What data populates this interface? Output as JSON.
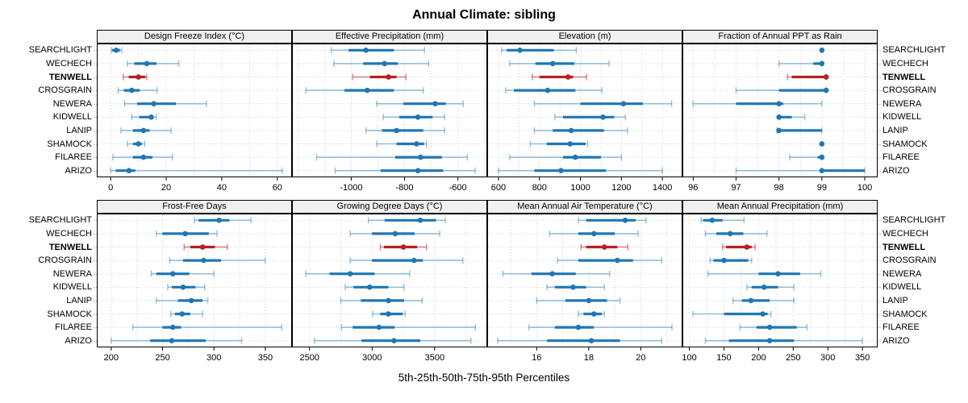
{
  "title": "Annual Climate: sibling",
  "caption": "5th-25th-50th-75th-95th Percentiles",
  "sites": [
    {
      "name": "SEARCHLIGHT",
      "highlight": false
    },
    {
      "name": "WECHECH",
      "highlight": false
    },
    {
      "name": "TENWELL",
      "highlight": true
    },
    {
      "name": "CROSGRAIN",
      "highlight": false
    },
    {
      "name": "NEWERA",
      "highlight": false
    },
    {
      "name": "KIDWELL",
      "highlight": false
    },
    {
      "name": "LANIP",
      "highlight": false
    },
    {
      "name": "SHAMOCK",
      "highlight": false
    },
    {
      "name": "FILAREE",
      "highlight": false
    },
    {
      "name": "ARIZO",
      "highlight": false
    }
  ],
  "colors": {
    "series": "#1f77b4",
    "series_light": "rgba(31,119,180,0.45)",
    "highlight": "#b22222",
    "highlight_light": "rgba(178,34,34,0.55)",
    "grid": "#cccccc",
    "border": "#000000",
    "header_bg": "#f0f0f0"
  },
  "chart_data": {
    "type": "dot-whisker-percentiles",
    "percentiles": [
      "5th",
      "25th",
      "50th",
      "75th",
      "95th"
    ],
    "note": "values[i] = [p5,p25,p50,p75,p95] for sites[i]; TENWELL highlighted red",
    "panels": [
      {
        "row": 0,
        "col": 0,
        "title": "Design Freeze Index (°C)",
        "xlim": [
          -5,
          65.3
        ],
        "grid_step": 10,
        "ticks": [
          0,
          20,
          40,
          60
        ],
        "tick_labels": [
          "0",
          "20",
          "40",
          "60"
        ],
        "values": [
          [
            0.3,
            0.5,
            2.0,
            3.4,
            4.0
          ],
          [
            6.0,
            8.5,
            13.0,
            16.5,
            24.5
          ],
          [
            4.5,
            6.5,
            10.0,
            12.5,
            13.0
          ],
          [
            2.7,
            4.7,
            7.6,
            10.5,
            16.7
          ],
          [
            5.0,
            9.5,
            15.5,
            23.5,
            34.5
          ],
          [
            7.6,
            10.3,
            14.6,
            15.4,
            16.4
          ],
          [
            3.7,
            8.0,
            11.8,
            14.0,
            21.8
          ],
          [
            6.0,
            8.0,
            10.0,
            11.2,
            12.3
          ],
          [
            0.8,
            8.0,
            11.8,
            15.0,
            22.2
          ],
          [
            0.0,
            1.8,
            6.6,
            8.9,
            61.8
          ]
        ]
      },
      {
        "row": 0,
        "col": 1,
        "title": "Effective Precipitation (mm)",
        "xlim": [
          -1222,
          -490
        ],
        "grid_step": 100,
        "ticks": [
          -1000,
          -800,
          -600
        ],
        "tick_labels": [
          "-1000",
          "-800",
          "-600"
        ],
        "values": [
          [
            -1075,
            -1010,
            -945,
            -840,
            -725
          ],
          [
            -1065,
            -955,
            -875,
            -825,
            -710
          ],
          [
            -995,
            -930,
            -860,
            -830,
            -795
          ],
          [
            -1170,
            -1025,
            -940,
            -840,
            -730
          ],
          [
            -905,
            -805,
            -685,
            -645,
            -580
          ],
          [
            -880,
            -820,
            -750,
            -695,
            -650
          ],
          [
            -945,
            -885,
            -830,
            -730,
            -650
          ],
          [
            -905,
            -830,
            -755,
            -727,
            -718
          ],
          [
            -1130,
            -835,
            -740,
            -660,
            -565
          ],
          [
            -1060,
            -890,
            -750,
            -655,
            -535
          ]
        ]
      },
      {
        "row": 0,
        "col": 2,
        "title": "Elevation (m)",
        "xlim": [
          545,
          1498
        ],
        "grid_step": 100,
        "ticks": [
          600,
          800,
          1000,
          1200,
          1400
        ],
        "tick_labels": [
          "600",
          "800",
          "1000",
          "1200",
          "1400"
        ],
        "values": [
          [
            615,
            640,
            705,
            870,
            980
          ],
          [
            655,
            780,
            865,
            970,
            1140
          ],
          [
            765,
            800,
            940,
            965,
            1030
          ],
          [
            635,
            675,
            840,
            975,
            1105
          ],
          [
            775,
            1000,
            1210,
            1305,
            1445
          ],
          [
            875,
            915,
            1110,
            1165,
            1220
          ],
          [
            775,
            865,
            955,
            1115,
            1230
          ],
          [
            755,
            835,
            950,
            1025,
            1035
          ],
          [
            655,
            915,
            975,
            1100,
            1200
          ],
          [
            600,
            775,
            905,
            1125,
            1400
          ]
        ]
      },
      {
        "row": 0,
        "col": 3,
        "title": "Fraction of Annual PPT as Rain",
        "xlim": [
          95.75,
          100.3
        ],
        "grid_step": 0.5,
        "ticks": [
          96,
          97,
          98,
          99,
          100
        ],
        "tick_labels": [
          "96",
          "97",
          "98",
          "99",
          "100"
        ],
        "values": [
          [
            99,
            99,
            99,
            99,
            99
          ],
          [
            98,
            98.8,
            99,
            99,
            99
          ],
          [
            98.2,
            98.3,
            99.1,
            99.1,
            99.1
          ],
          [
            97,
            98,
            99.1,
            99.1,
            99.1
          ],
          [
            96,
            97,
            98,
            98.1,
            99
          ],
          [
            98,
            98,
            98,
            98.3,
            98.6
          ],
          [
            97.95,
            98,
            98,
            99,
            99
          ],
          [
            99,
            99,
            99,
            99,
            99
          ],
          [
            98.25,
            98.9,
            99,
            99,
            99
          ],
          [
            97,
            99,
            99,
            100,
            100
          ]
        ]
      },
      {
        "row": 1,
        "col": 0,
        "title": "Frost-Free Days",
        "xlim": [
          186,
          376
        ],
        "grid_step": 25,
        "ticks": [
          200,
          250,
          300,
          350
        ],
        "tick_labels": [
          "200",
          "250",
          "300",
          "350"
        ],
        "values": [
          [
            281,
            285,
            305,
            315,
            336
          ],
          [
            244,
            250,
            272,
            295,
            303
          ],
          [
            271,
            277,
            289,
            301,
            313
          ],
          [
            257,
            270,
            290,
            307,
            350
          ],
          [
            239,
            244,
            260,
            276,
            300
          ],
          [
            255,
            259,
            270,
            282,
            291
          ],
          [
            244,
            265,
            278,
            289,
            294
          ],
          [
            258,
            262,
            269,
            277,
            289
          ],
          [
            221,
            250,
            260,
            268,
            366
          ],
          [
            200,
            238,
            259,
            292,
            327
          ]
        ]
      },
      {
        "row": 1,
        "col": 1,
        "title": "Growing Degree Days (°C)",
        "xlim": [
          2360,
          3920
        ],
        "grid_step": 250,
        "ticks": [
          2500,
          3000,
          3500
        ],
        "tick_labels": [
          "2500",
          "3000",
          "3500"
        ],
        "values": [
          [
            2970,
            3100,
            3385,
            3510,
            3585
          ],
          [
            2825,
            3000,
            3185,
            3340,
            3540
          ],
          [
            3065,
            3095,
            3250,
            3360,
            3435
          ],
          [
            2825,
            3000,
            3335,
            3405,
            3725
          ],
          [
            2470,
            2660,
            2825,
            3020,
            3300
          ],
          [
            2785,
            2850,
            2980,
            3130,
            3255
          ],
          [
            2750,
            2910,
            3130,
            3255,
            3400
          ],
          [
            3005,
            3065,
            3130,
            3245,
            3265
          ],
          [
            2755,
            2845,
            3055,
            3180,
            3825
          ],
          [
            2540,
            2915,
            3175,
            3385,
            3790
          ]
        ]
      },
      {
        "row": 1,
        "col": 2,
        "title": "Mean Annual Air Temperature (°C)",
        "xlim": [
          14.1,
          21.6
        ],
        "grid_step": 1,
        "ticks": [
          16,
          18,
          20
        ],
        "tick_labels": [
          "16",
          "18",
          "20"
        ],
        "values": [
          [
            17.6,
            17.9,
            19.4,
            19.8,
            20.2
          ],
          [
            16.5,
            17.6,
            18.2,
            19.0,
            19.9
          ],
          [
            17.7,
            17.9,
            18.6,
            19.1,
            19.5
          ],
          [
            16.8,
            17.6,
            19.1,
            19.7,
            20.8
          ],
          [
            14.7,
            15.8,
            16.6,
            17.5,
            18.8
          ],
          [
            16.4,
            16.7,
            17.4,
            17.9,
            18.6
          ],
          [
            16.0,
            17.1,
            18.0,
            18.7,
            19.2
          ],
          [
            17.6,
            17.8,
            18.2,
            18.5,
            18.6
          ],
          [
            15.7,
            16.7,
            17.6,
            18.2,
            21.2
          ],
          [
            14.5,
            16.4,
            18.1,
            19.2,
            20.8
          ]
        ]
      },
      {
        "row": 1,
        "col": 3,
        "title": "Mean Annual Precipitation (mm)",
        "xlim": [
          90,
          372
        ],
        "grid_step": 25,
        "ticks": [
          100,
          150,
          200,
          250,
          300,
          350
        ],
        "tick_labels": [
          "100",
          "150",
          "200",
          "250",
          "300",
          "350"
        ],
        "values": [
          [
            117,
            120,
            133,
            148,
            179
          ],
          [
            123,
            139,
            159,
            178,
            212
          ],
          [
            148,
            153,
            183,
            190,
            195
          ],
          [
            130,
            135,
            150,
            185,
            190
          ],
          [
            127,
            200,
            228,
            260,
            290
          ],
          [
            183,
            190,
            208,
            228,
            251
          ],
          [
            163,
            176,
            189,
            216,
            251
          ],
          [
            105,
            150,
            206,
            213,
            218
          ],
          [
            173,
            197,
            216,
            255,
            270
          ],
          [
            123,
            157,
            216,
            251,
            350
          ]
        ]
      }
    ]
  }
}
